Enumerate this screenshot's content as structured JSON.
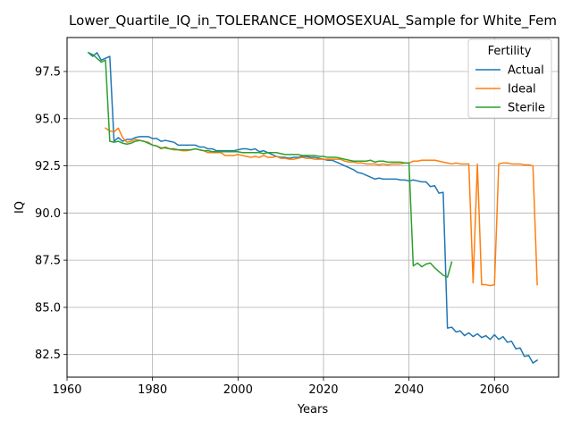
{
  "chart_data": {
    "type": "line",
    "title": "Lower_Quartile_IQ_in_TOLERANCE_HOMOSEXUAL_Sample for White_Fem",
    "xlabel": "Years",
    "ylabel": "IQ",
    "xlim": [
      1960,
      2075
    ],
    "ylim": [
      81.3,
      99.3
    ],
    "xticks": [
      1960,
      1980,
      2000,
      2020,
      2040,
      2060
    ],
    "xtick_labels": [
      "1960",
      "1980",
      "2000",
      "2020",
      "2040",
      "2060"
    ],
    "yticks": [
      82.5,
      85.0,
      87.5,
      90.0,
      92.5,
      95.0,
      97.5
    ],
    "ytick_labels": [
      "82.5",
      "85.0",
      "87.5",
      "90.0",
      "92.5",
      "95.0",
      "97.5"
    ],
    "grid": true,
    "legend": {
      "title": "Fertility",
      "position": "top-right"
    },
    "series": [
      {
        "name": "Actual",
        "color": "#1f77b4",
        "x": [
          1965,
          1966,
          1967,
          1968,
          1969,
          1970,
          1971,
          1972,
          1973,
          1974,
          1975,
          1976,
          1977,
          1978,
          1979,
          1980,
          1981,
          1982,
          1983,
          1984,
          1985,
          1986,
          1987,
          1988,
          1989,
          1990,
          1991,
          1992,
          1993,
          1994,
          1995,
          1996,
          1997,
          1998,
          1999,
          2000,
          2001,
          2002,
          2003,
          2004,
          2005,
          2006,
          2007,
          2008,
          2009,
          2010,
          2011,
          2012,
          2013,
          2014,
          2015,
          2016,
          2017,
          2018,
          2019,
          2020,
          2021,
          2022,
          2023,
          2024,
          2025,
          2026,
          2027,
          2028,
          2029,
          2030,
          2031,
          2032,
          2033,
          2034,
          2035,
          2036,
          2037,
          2038,
          2039,
          2040,
          2041,
          2042,
          2043,
          2044,
          2045,
          2046,
          2047,
          2048,
          2049,
          2050,
          2051,
          2052,
          2053,
          2054,
          2055,
          2056,
          2057,
          2058,
          2059,
          2060,
          2061,
          2062,
          2063,
          2064,
          2065,
          2066,
          2067,
          2068,
          2069,
          2070
        ],
        "y": [
          98.5,
          98.3,
          98.5,
          98.1,
          98.2,
          98.3,
          93.8,
          94.0,
          93.8,
          93.9,
          93.9,
          94.0,
          94.05,
          94.05,
          94.05,
          93.95,
          93.95,
          93.8,
          93.85,
          93.8,
          93.75,
          93.6,
          93.6,
          93.6,
          93.6,
          93.6,
          93.5,
          93.5,
          93.4,
          93.4,
          93.3,
          93.3,
          93.3,
          93.3,
          93.3,
          93.35,
          93.4,
          93.4,
          93.35,
          93.4,
          93.25,
          93.3,
          93.2,
          93.1,
          93.0,
          92.95,
          92.95,
          92.9,
          92.95,
          92.95,
          93.0,
          93.0,
          92.95,
          92.95,
          92.9,
          92.85,
          92.8,
          92.8,
          92.7,
          92.6,
          92.5,
          92.4,
          92.3,
          92.15,
          92.1,
          92.0,
          91.9,
          91.8,
          91.85,
          91.8,
          91.8,
          91.8,
          91.8,
          91.75,
          91.75,
          91.7,
          91.75,
          91.7,
          91.65,
          91.65,
          91.4,
          91.45,
          91.05,
          91.1,
          83.9,
          83.95,
          83.7,
          83.75,
          83.5,
          83.65,
          83.45,
          83.6,
          83.4,
          83.5,
          83.3,
          83.55,
          83.3,
          83.45,
          83.15,
          83.2,
          82.8,
          82.85,
          82.4,
          82.45,
          82.05,
          82.2
        ]
      },
      {
        "name": "Ideal",
        "color": "#ff7f0e",
        "x": [
          1969,
          1970,
          1971,
          1972,
          1973,
          1974,
          1975,
          1976,
          1977,
          1978,
          1979,
          1980,
          1981,
          1982,
          1983,
          1984,
          1985,
          1986,
          1987,
          1988,
          1989,
          1990,
          1991,
          1992,
          1993,
          1994,
          1995,
          1996,
          1997,
          1998,
          1999,
          2000,
          2001,
          2002,
          2003,
          2004,
          2005,
          2006,
          2007,
          2008,
          2009,
          2010,
          2011,
          2012,
          2013,
          2014,
          2015,
          2016,
          2017,
          2018,
          2019,
          2020,
          2021,
          2022,
          2023,
          2024,
          2025,
          2026,
          2027,
          2028,
          2029,
          2030,
          2031,
          2032,
          2033,
          2034,
          2035,
          2036,
          2037,
          2038,
          2039,
          2040,
          2041,
          2042,
          2043,
          2044,
          2045,
          2046,
          2047,
          2048,
          2049,
          2050,
          2051,
          2052,
          2053,
          2054,
          2055,
          2056,
          2057,
          2058,
          2059,
          2060,
          2061,
          2062,
          2063,
          2064,
          2065,
          2066,
          2067,
          2068,
          2069,
          2070
        ],
        "y": [
          94.5,
          94.35,
          94.3,
          94.5,
          94.0,
          93.75,
          93.8,
          93.9,
          93.85,
          93.8,
          93.75,
          93.6,
          93.55,
          93.4,
          93.5,
          93.4,
          93.35,
          93.35,
          93.3,
          93.3,
          93.35,
          93.4,
          93.35,
          93.3,
          93.2,
          93.2,
          93.2,
          93.2,
          93.05,
          93.05,
          93.05,
          93.1,
          93.05,
          93.0,
          92.95,
          93.0,
          92.95,
          93.05,
          92.95,
          92.95,
          93.0,
          92.9,
          92.9,
          92.85,
          92.85,
          92.9,
          92.95,
          92.9,
          92.9,
          92.85,
          92.85,
          92.85,
          92.85,
          92.85,
          92.85,
          92.85,
          92.75,
          92.7,
          92.7,
          92.65,
          92.65,
          92.6,
          92.6,
          92.6,
          92.55,
          92.6,
          92.55,
          92.6,
          92.6,
          92.6,
          92.65,
          92.65,
          92.75,
          92.75,
          92.8,
          92.8,
          92.8,
          92.8,
          92.75,
          92.7,
          92.65,
          92.6,
          92.65,
          92.6,
          92.6,
          92.6,
          86.3,
          92.6,
          86.2,
          86.2,
          86.15,
          86.2,
          92.6,
          92.65,
          92.65,
          92.6,
          92.6,
          92.6,
          92.55,
          92.55,
          92.5,
          86.2
        ]
      },
      {
        "name": "Sterile",
        "color": "#2ca02c",
        "x": [
          1965,
          1966,
          1967,
          1968,
          1969,
          1970,
          1971,
          1972,
          1973,
          1974,
          1975,
          1976,
          1977,
          1978,
          1979,
          1980,
          1981,
          1982,
          1983,
          1984,
          1985,
          1986,
          1987,
          1988,
          1989,
          1990,
          1991,
          1992,
          1993,
          1994,
          1995,
          1996,
          1997,
          1998,
          1999,
          2000,
          2001,
          2002,
          2003,
          2004,
          2005,
          2006,
          2007,
          2008,
          2009,
          2010,
          2011,
          2012,
          2013,
          2014,
          2015,
          2016,
          2017,
          2018,
          2019,
          2020,
          2021,
          2022,
          2023,
          2024,
          2025,
          2026,
          2027,
          2028,
          2029,
          2030,
          2031,
          2032,
          2033,
          2034,
          2035,
          2036,
          2037,
          2038,
          2039,
          2040,
          2041,
          2042,
          2043,
          2044,
          2045,
          2046,
          2047,
          2048,
          2049,
          2050
        ],
        "y": [
          98.5,
          98.4,
          98.2,
          98.0,
          98.1,
          93.8,
          93.75,
          93.8,
          93.7,
          93.65,
          93.7,
          93.8,
          93.85,
          93.8,
          93.7,
          93.6,
          93.55,
          93.45,
          93.45,
          93.4,
          93.4,
          93.35,
          93.35,
          93.35,
          93.35,
          93.4,
          93.35,
          93.3,
          93.3,
          93.25,
          93.25,
          93.25,
          93.25,
          93.25,
          93.25,
          93.25,
          93.2,
          93.2,
          93.2,
          93.2,
          93.2,
          93.15,
          93.2,
          93.2,
          93.2,
          93.15,
          93.1,
          93.1,
          93.1,
          93.1,
          93.05,
          93.05,
          93.05,
          93.05,
          93.0,
          93.0,
          92.95,
          92.95,
          92.95,
          92.9,
          92.85,
          92.8,
          92.75,
          92.75,
          92.75,
          92.75,
          92.8,
          92.7,
          92.75,
          92.75,
          92.7,
          92.7,
          92.7,
          92.7,
          92.65,
          92.65,
          87.2,
          87.35,
          87.15,
          87.3,
          87.35,
          87.1,
          86.9,
          86.7,
          86.6,
          87.4
        ]
      }
    ]
  }
}
